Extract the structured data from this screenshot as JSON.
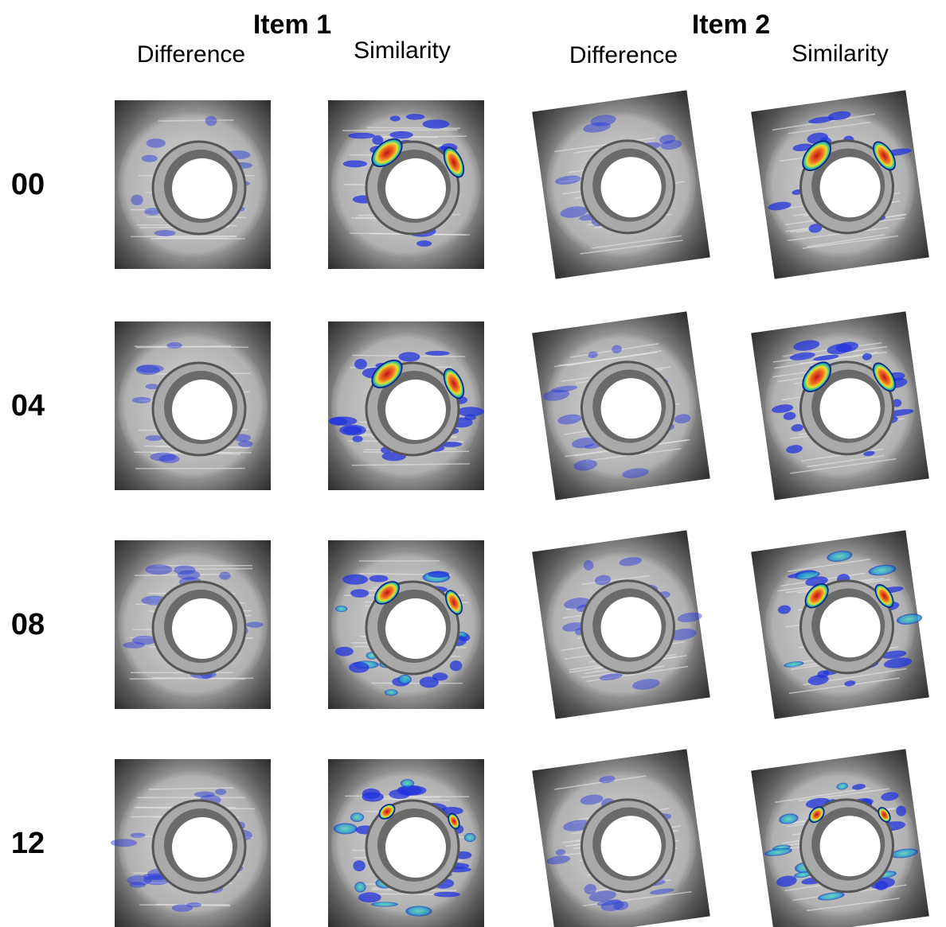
{
  "items": [
    {
      "title": "Item 1",
      "columns": [
        "Difference",
        "Similarity"
      ]
    },
    {
      "title": "Item 2",
      "columns": [
        "Difference",
        "Similarity"
      ]
    }
  ],
  "rows": [
    "00",
    "04",
    "08",
    "12"
  ]
}
